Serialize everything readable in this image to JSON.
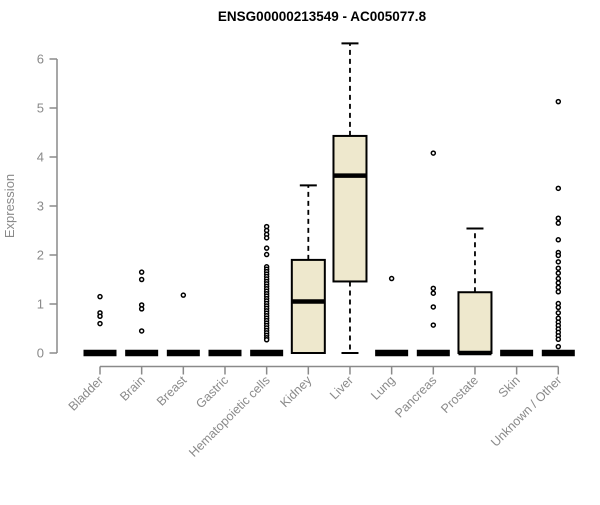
{
  "chart_data": {
    "type": "boxplot",
    "title": "ENSG00000213549 - AC005077.8",
    "ylabel": "Expression",
    "xlabel": "",
    "ylim": [
      0,
      6.4
    ],
    "yticks": [
      0,
      1,
      2,
      3,
      4,
      5,
      6
    ],
    "grid": false,
    "legend": "none",
    "categories": [
      "Bladder",
      "Brain",
      "Breast",
      "Gastric",
      "Hematopoietic cells",
      "Kidney",
      "Liver",
      "Lung",
      "Pancreas",
      "Prostate",
      "Skin",
      "Unknown / Other"
    ],
    "boxes": [
      {
        "category": "Bladder",
        "q1": 0,
        "median": 0,
        "q3": 0,
        "whisker_low": 0,
        "whisker_high": 0,
        "outliers": [
          1.15,
          0.82,
          0.75,
          0.6
        ]
      },
      {
        "category": "Brain",
        "q1": 0,
        "median": 0,
        "q3": 0,
        "whisker_low": 0,
        "whisker_high": 0,
        "outliers": [
          1.65,
          1.5,
          0.98,
          0.9,
          0.45
        ]
      },
      {
        "category": "Breast",
        "q1": 0,
        "median": 0,
        "q3": 0,
        "whisker_low": 0,
        "whisker_high": 0,
        "outliers": [
          1.18
        ]
      },
      {
        "category": "Gastric",
        "q1": 0,
        "median": 0,
        "q3": 0,
        "whisker_low": 0,
        "whisker_high": 0,
        "outliers": []
      },
      {
        "category": "Hematopoietic cells",
        "q1": 0,
        "median": 0,
        "q3": 0,
        "whisker_low": 0,
        "whisker_high": 0,
        "outliers": [
          2.58,
          2.5,
          2.42,
          2.35,
          2.14,
          2.01,
          1.76,
          1.71,
          1.66,
          1.61,
          1.56,
          1.51,
          1.46,
          1.41,
          1.36,
          1.31,
          1.26,
          1.21,
          1.16,
          1.11,
          1.06,
          1.01,
          0.96,
          0.91,
          0.86,
          0.81,
          0.76,
          0.71,
          0.66,
          0.61,
          0.56,
          0.51,
          0.46,
          0.41,
          0.36,
          0.31,
          0.27
        ]
      },
      {
        "category": "Kidney",
        "q1": 0,
        "median": 1.05,
        "q3": 1.9,
        "whisker_low": 0,
        "whisker_high": 3.42,
        "outliers": []
      },
      {
        "category": "Liver",
        "q1": 1.46,
        "median": 3.62,
        "q3": 4.43,
        "whisker_low": 0,
        "whisker_high": 6.32,
        "outliers": []
      },
      {
        "category": "Lung",
        "q1": 0,
        "median": 0,
        "q3": 0,
        "whisker_low": 0,
        "whisker_high": 0,
        "outliers": [
          1.52
        ]
      },
      {
        "category": "Pancreas",
        "q1": 0,
        "median": 0,
        "q3": 0,
        "whisker_low": 0,
        "whisker_high": 0,
        "outliers": [
          4.08,
          1.32,
          1.22,
          0.94,
          0.57
        ]
      },
      {
        "category": "Prostate",
        "q1": 0,
        "median": 0,
        "q3": 1.24,
        "whisker_low": 0,
        "whisker_high": 2.54,
        "outliers": []
      },
      {
        "category": "Skin",
        "q1": 0,
        "median": 0,
        "q3": 0,
        "whisker_low": 0,
        "whisker_high": 0,
        "outliers": []
      },
      {
        "category": "Unknown / Other",
        "q1": 0,
        "median": 0,
        "q3": 0,
        "whisker_low": 0,
        "whisker_high": 0,
        "outliers": [
          5.13,
          3.36,
          2.75,
          2.65,
          2.31,
          2.05,
          1.99,
          1.86,
          1.73,
          1.63,
          1.52,
          1.43,
          1.34,
          1.25,
          1.01,
          0.93,
          0.82,
          0.71,
          0.63,
          0.56,
          0.49,
          0.42,
          0.35,
          0.28,
          0.13
        ]
      }
    ],
    "colors": {
      "box_fill": "#EEE8CD",
      "box_stroke": "#000000",
      "median": "#000000",
      "whisker": "#000000",
      "outlier_stroke": "#000000",
      "axis": "#8a8a8a",
      "tick_label": "#8a8a8a",
      "title": "#000000",
      "background": "#ffffff"
    }
  }
}
